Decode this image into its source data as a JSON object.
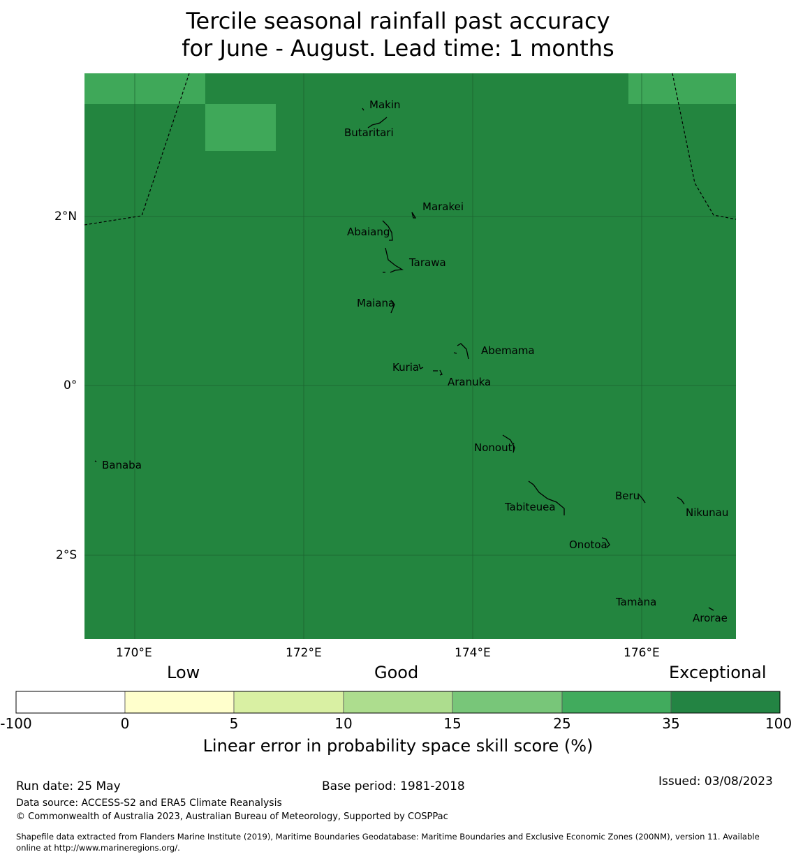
{
  "title": {
    "line1": "Tercile seasonal rainfall past accuracy",
    "line2": "for June - August. Lead time: 1 months"
  },
  "map": {
    "background_color": "#23853f",
    "highlight_color": "#3fa859",
    "xticks": [
      "170°E",
      "172°E",
      "174°E",
      "176°E"
    ],
    "yticks": [
      "2°N",
      "0°",
      "2°S"
    ],
    "islands": [
      {
        "name": "Makin"
      },
      {
        "name": "Butaritari"
      },
      {
        "name": "Marakei"
      },
      {
        "name": "Abaiang"
      },
      {
        "name": "Tarawa"
      },
      {
        "name": "Maiana"
      },
      {
        "name": "Abemama"
      },
      {
        "name": "Kuria"
      },
      {
        "name": "Aranuka"
      },
      {
        "name": "Banaba"
      },
      {
        "name": "Nonouti"
      },
      {
        "name": "Beru"
      },
      {
        "name": "Tabiteuea"
      },
      {
        "name": "Nikunau"
      },
      {
        "name": "Onotoa"
      },
      {
        "name": "Tamana"
      },
      {
        "name": "Arorae"
      }
    ]
  },
  "colorbar": {
    "categories": [
      "Low",
      "Good",
      "Exceptional"
    ],
    "ticks": [
      "-100",
      "0",
      "5",
      "10",
      "15",
      "25",
      "35",
      "100"
    ],
    "colors": [
      "#ffffff",
      "#ffffcc",
      "#d9f0a3",
      "#addd8e",
      "#78c679",
      "#41ab5d",
      "#238443"
    ],
    "label": "Linear error in probability space skill score (%)"
  },
  "footer": {
    "run_date": "Run date: 25 May",
    "base_period": "Base period: 1981-2018",
    "issued": "Issued: 03/08/2023",
    "data_source": "Data source: ACCESS-S2 and ERA5 Climate Reanalysis",
    "copyright": "© Commonwealth of Australia 2023, Australian Bureau of Meteorology, Supported by COSPPac",
    "shapefile_line1": "Shapefile data extracted from Flanders Marine Institute (2019), Maritime Boundaries Geodatabase: Maritime Boundaries and Exclusive Economic Zones (200NM), version 11. Available",
    "shapefile_line2": "online at http://www.marineregions.org/."
  }
}
